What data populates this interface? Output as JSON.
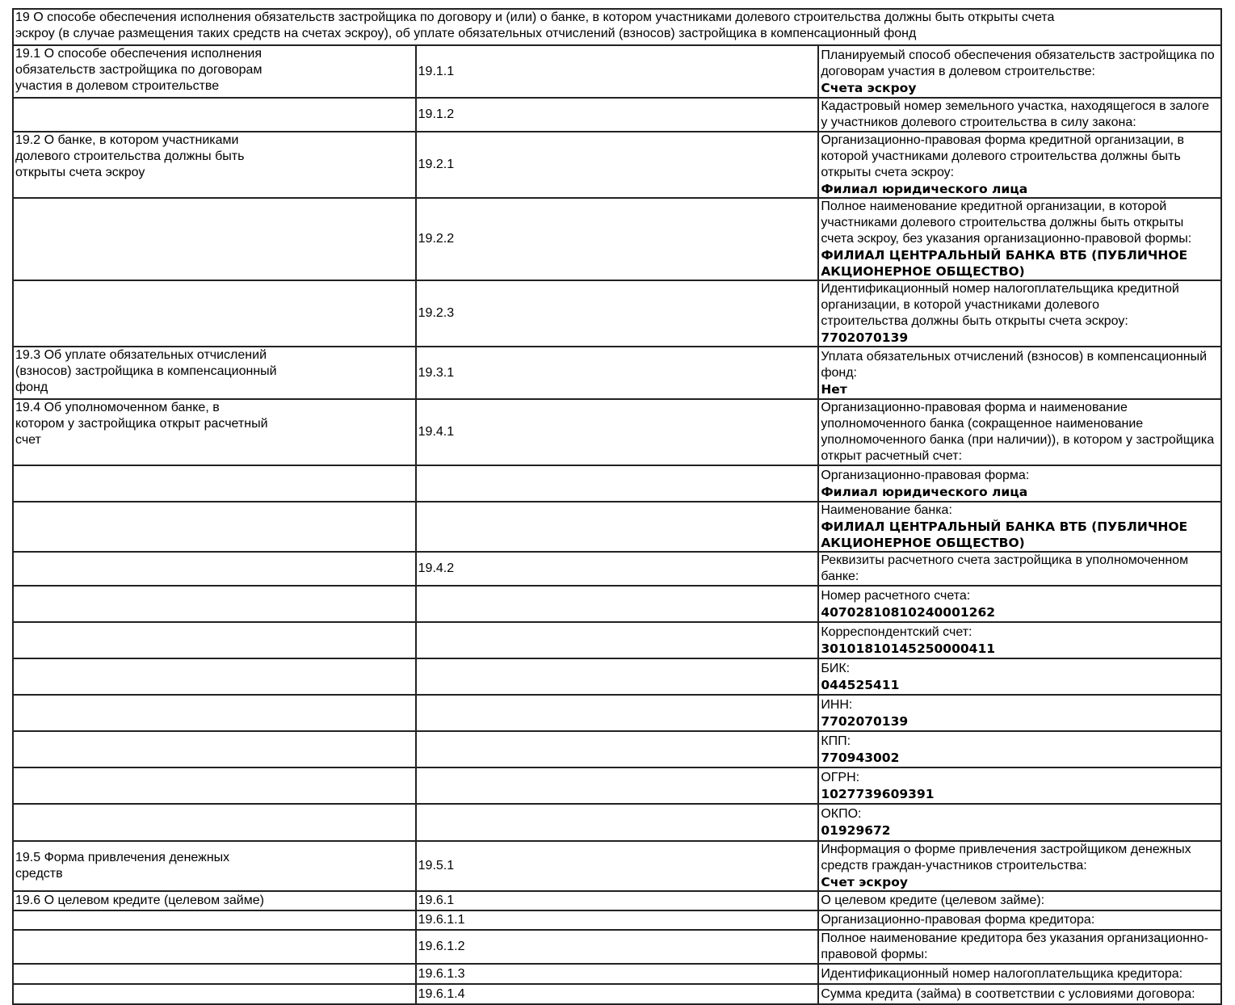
{
  "header": "19 О способе обеспечения исполнения обязательств застройщика по договору и (или) о банке, в котором участниками долевого строительства должны быть открыты счета\nэскроу (в случае размещения таких средств на счетах эскроу), об уплате обязательных отчислений (взносов) застройщика в компенсационный фонд",
  "rows": [
    {
      "section": "19.1 О способе обеспечения исполнения\nобязательств застройщика по договорам\nучастия в долевом строительстве",
      "code": "19.1.1",
      "label": "Планируемый способ обеспечения обязательств застройщика по договорам участия в долевом строительстве:",
      "value": "Счета эскроу"
    },
    {
      "section": "",
      "code": "19.1.2",
      "label": "Кадастровый номер земельного участка, находящегося в залоге у участников долевого строительства в силу закона:",
      "value": ""
    },
    {
      "section": "19.2 О банке, в котором участниками\nдолевого строительства должны быть\nоткрыты счета эскроу",
      "code": "19.2.1",
      "label": "Организационно-правовая форма кредитной организации, в которой участниками долевого строительства должны быть\nоткрыты счета эскроу:",
      "value": "Филиал юридического лица"
    },
    {
      "section": "",
      "code": "19.2.2",
      "label": "Полное наименование кредитной организации, в которой участниками долевого строительства должны быть открыты\nсчета эскроу, без указания организационно-правовой формы:",
      "value": "ФИЛИАЛ ЦЕНТРАЛЬНЫЙ БАНКА ВТБ (ПУБЛИЧНОЕ АКЦИОНЕРНОЕ ОБЩЕСТВО)"
    },
    {
      "section": "",
      "code": "19.2.3",
      "label": "Идентификационный номер налогоплательщика кредитной организации, в которой участниками долевого\nстроительства должны быть открыты счета эскроу:",
      "value": "7702070139"
    },
    {
      "section": "19.3 Об уплате обязательных отчислений\n(взносов) застройщика в компенсационный\nфонд",
      "code": "19.3.1",
      "label": "Уплата обязательных отчислений (взносов) в компенсационный фонд:",
      "value": "Нет"
    },
    {
      "section": "19.4 Об уполномоченном банке, в\nкотором у застройщика открыт расчетный\nсчет",
      "code": "19.4.1",
      "label": "Организационно-правовая форма и наименование уполномоченного банка (сокращенное наименование\nуполномоченного банка (при наличии)), в котором у застройщика открыт расчетный счет:",
      "value": ""
    },
    {
      "section": "",
      "code": "",
      "label": "Организационно-правовая форма:",
      "value": "Филиал юридического лица"
    },
    {
      "section": "",
      "code": "",
      "label": "Наименование банка:",
      "value": "ФИЛИАЛ ЦЕНТРАЛЬНЫЙ БАНКА ВТБ (ПУБЛИЧНОЕ АКЦИОНЕРНОЕ ОБЩЕСТВО)"
    },
    {
      "section": "",
      "code": "19.4.2",
      "label": "Реквизиты расчетного счета застройщика в уполномоченном банке:",
      "value": ""
    },
    {
      "section": "",
      "code": "",
      "label": "Номер расчетного счета:",
      "value": "40702810810240001262"
    },
    {
      "section": "",
      "code": "",
      "label": "Корреспондентский счет:",
      "value": "30101810145250000411"
    },
    {
      "section": "",
      "code": "",
      "label": "БИК:",
      "value": "044525411"
    },
    {
      "section": "",
      "code": "",
      "label": "ИНН:",
      "value": "7702070139"
    },
    {
      "section": "",
      "code": "",
      "label": "КПП:",
      "value": "770943002"
    },
    {
      "section": "",
      "code": "",
      "label": "ОГРН:",
      "value": "1027739609391"
    },
    {
      "section": "",
      "code": "",
      "label": "ОКПО:",
      "value": "01929672"
    },
    {
      "section": "19.5 Форма привлечения денежных\nсредств",
      "code": "19.5.1",
      "label": "Информация о форме привлечения застройщиком денежных средств граждан-участников строительства:",
      "value": "Счет эскроу"
    },
    {
      "section": "19.6 О целевом кредите (целевом займе)",
      "code": "19.6.1",
      "label": "О целевом кредите (целевом займе):",
      "value": ""
    },
    {
      "section": "",
      "code": "19.6.1.1",
      "label": "Организационно-правовая форма кредитора:",
      "value": ""
    },
    {
      "section": "",
      "code": "19.6.1.2",
      "label": "Полное наименование кредитора без указания организационно-правовой формы:",
      "value": ""
    },
    {
      "section": "",
      "code": "19.6.1.3",
      "label": "Идентификационный номер налогоплательщика кредитора:",
      "value": ""
    },
    {
      "section": "",
      "code": "19.6.1.4",
      "label": "Сумма кредита (займа) в соответствии с условиями договора:",
      "value": ""
    }
  ]
}
